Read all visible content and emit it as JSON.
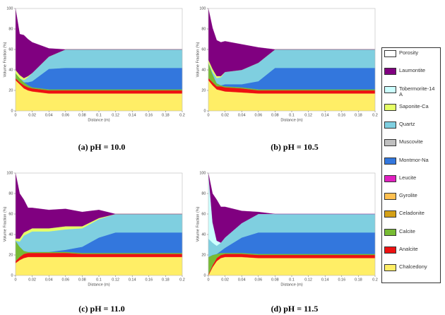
{
  "chart_data": [
    {
      "type": "area",
      "title": "(a) pH = 10.0",
      "x_label": "Distance (m)",
      "y_label": "Volume Fraction (%)",
      "x": [
        0,
        0.005,
        0.01,
        0.015,
        0.02,
        0.04,
        0.06,
        0.08,
        0.1,
        0.12,
        0.2
      ],
      "xlim": [
        0,
        0.2
      ],
      "ylim": [
        0,
        100
      ],
      "xticks": [
        0,
        0.02,
        0.04,
        0.06,
        0.08,
        0.1,
        0.12,
        0.14,
        0.16,
        0.18,
        0.2
      ],
      "yticks": [
        0,
        20,
        40,
        60,
        80,
        100
      ],
      "series": [
        {
          "name": "Chalcedony",
          "color": "#ffee66",
          "values": [
            30,
            26,
            22,
            20,
            19,
            17,
            17,
            17,
            17,
            17,
            17
          ]
        },
        {
          "name": "Analcite",
          "color": "#ee1111",
          "values": [
            2,
            2,
            3,
            3,
            3,
            3,
            3,
            3,
            3,
            3,
            3
          ]
        },
        {
          "name": "Calcite",
          "color": "#77bb33",
          "values": [
            5,
            4,
            3,
            2,
            1,
            1,
            1,
            1,
            1,
            1,
            1
          ]
        },
        {
          "name": "Montmor-Na",
          "color": "#3377dd",
          "values": [
            0,
            0,
            0,
            3,
            6,
            20,
            21,
            21,
            21,
            21,
            21
          ]
        },
        {
          "name": "Quartz",
          "color": "#7fcfe0",
          "values": [
            0,
            0,
            2,
            5,
            8,
            12,
            18,
            18,
            18,
            18,
            18
          ]
        },
        {
          "name": "Saponite-Ca",
          "color": "#e6ff66",
          "values": [
            3,
            3,
            2,
            1,
            0,
            0,
            0,
            0,
            0,
            0,
            0
          ]
        },
        {
          "name": "Laumontite",
          "color": "#800080",
          "values": [
            60,
            40,
            42,
            36,
            30,
            8,
            0,
            0,
            0,
            0,
            0
          ]
        }
      ]
    },
    {
      "type": "area",
      "title": "(b) pH = 10.5",
      "x_label": "Distance (m)",
      "y_label": "Volume Fraction (%)",
      "x": [
        0,
        0.005,
        0.01,
        0.015,
        0.02,
        0.04,
        0.06,
        0.08,
        0.1,
        0.12,
        0.2
      ],
      "xlim": [
        0,
        0.2
      ],
      "ylim": [
        0,
        100
      ],
      "xticks": [
        0,
        0.02,
        0.04,
        0.06,
        0.08,
        0.1,
        0.12,
        0.14,
        0.16,
        0.18,
        0.2
      ],
      "yticks": [
        0,
        20,
        40,
        60,
        80,
        100
      ],
      "series": [
        {
          "name": "Chalcedony",
          "color": "#ffee66",
          "values": [
            30,
            25,
            21,
            20,
            19,
            18,
            17,
            17,
            17,
            17,
            17
          ]
        },
        {
          "name": "Analcite",
          "color": "#ee1111",
          "values": [
            2,
            3,
            3,
            4,
            4,
            4,
            3,
            3,
            3,
            3,
            3
          ]
        },
        {
          "name": "Calcite",
          "color": "#77bb33",
          "values": [
            15,
            8,
            3,
            1,
            1,
            1,
            1,
            1,
            1,
            1,
            1
          ]
        },
        {
          "name": "Montmor-Na",
          "color": "#3377dd",
          "values": [
            0,
            0,
            0,
            0,
            2,
            3,
            8,
            21,
            21,
            21,
            21
          ]
        },
        {
          "name": "Quartz",
          "color": "#7fcfe0",
          "values": [
            0,
            2,
            5,
            8,
            12,
            14,
            18,
            18,
            18,
            18,
            18
          ]
        },
        {
          "name": "Saponite-Ca",
          "color": "#e6ff66",
          "values": [
            3,
            3,
            2,
            1,
            0,
            0,
            0,
            0,
            0,
            0,
            0
          ]
        },
        {
          "name": "Laumontite",
          "color": "#800080",
          "values": [
            50,
            40,
            35,
            33,
            30,
            25,
            15,
            0,
            0,
            0,
            0
          ]
        }
      ]
    },
    {
      "type": "area",
      "title": "(c) pH = 11.0",
      "x_label": "Distance (m)",
      "y_label": "Volume Fraction (%)",
      "x": [
        0,
        0.005,
        0.01,
        0.015,
        0.02,
        0.04,
        0.06,
        0.08,
        0.1,
        0.12,
        0.2
      ],
      "xlim": [
        0,
        0.2
      ],
      "ylim": [
        0,
        100
      ],
      "xticks": [
        0,
        0.02,
        0.04,
        0.06,
        0.08,
        0.1,
        0.12,
        0.14,
        0.16,
        0.18,
        0.2
      ],
      "yticks": [
        0,
        20,
        40,
        60,
        80,
        100
      ],
      "series": [
        {
          "name": "Chalcedony",
          "color": "#ffee66",
          "values": [
            12,
            15,
            17,
            18,
            18,
            18,
            18,
            18,
            18,
            18,
            18
          ]
        },
        {
          "name": "Analcite",
          "color": "#ee1111",
          "values": [
            2,
            3,
            4,
            4,
            4,
            4,
            4,
            3,
            3,
            3,
            3
          ]
        },
        {
          "name": "Calcite",
          "color": "#77bb33",
          "values": [
            20,
            10,
            3,
            1,
            1,
            1,
            1,
            1,
            1,
            1,
            1
          ]
        },
        {
          "name": "Montmor-Na",
          "color": "#3377dd",
          "values": [
            0,
            0,
            0,
            0,
            0,
            0,
            2,
            6,
            15,
            20,
            20
          ]
        },
        {
          "name": "Quartz",
          "color": "#7fcfe0",
          "values": [
            0,
            5,
            15,
            18,
            20,
            20,
            20,
            18,
            18,
            18,
            18
          ]
        },
        {
          "name": "Saponite-Ca",
          "color": "#e6ff66",
          "values": [
            2,
            3,
            3,
            3,
            3,
            3,
            3,
            2,
            1,
            0,
            0
          ]
        },
        {
          "name": "Laumontite",
          "color": "#800080",
          "values": [
            64,
            44,
            32,
            22,
            20,
            18,
            17,
            14,
            8,
            0,
            0
          ]
        }
      ]
    },
    {
      "type": "area",
      "title": "(d) pH = 11.5",
      "x_label": "Distance (m)",
      "y_label": "Volume Fraction (%)",
      "x": [
        0,
        0.005,
        0.01,
        0.015,
        0.02,
        0.04,
        0.06,
        0.08,
        0.1,
        0.12,
        0.2
      ],
      "xlim": [
        0,
        0.2
      ],
      "ylim": [
        0,
        100
      ],
      "xticks": [
        0,
        0.02,
        0.04,
        0.06,
        0.08,
        0.1,
        0.12,
        0.14,
        0.16,
        0.18,
        0.2
      ],
      "yticks": [
        0,
        20,
        40,
        60,
        80,
        100
      ],
      "series": [
        {
          "name": "Chalcedony",
          "color": "#ffee66",
          "values": [
            0,
            8,
            14,
            17,
            18,
            18,
            17,
            17,
            17,
            17,
            17
          ]
        },
        {
          "name": "Analcite",
          "color": "#ee1111",
          "values": [
            1,
            2,
            3,
            3,
            3,
            3,
            3,
            3,
            3,
            3,
            3
          ]
        },
        {
          "name": "Calcite",
          "color": "#77bb33",
          "values": [
            17,
            10,
            4,
            2,
            1,
            1,
            1,
            1,
            1,
            1,
            1
          ]
        },
        {
          "name": "Montmor-Na",
          "color": "#3377dd",
          "values": [
            0,
            0,
            0,
            2,
            5,
            15,
            21,
            21,
            21,
            21,
            21
          ]
        },
        {
          "name": "Quartz",
          "color": "#7fcfe0",
          "values": [
            18,
            12,
            8,
            8,
            10,
            14,
            18,
            18,
            18,
            18,
            18
          ]
        },
        {
          "name": "Tobermorite-14A",
          "color": "#ccffff",
          "values": [
            64,
            20,
            5,
            0,
            0,
            0,
            0,
            0,
            0,
            0,
            0
          ]
        },
        {
          "name": "Laumontite",
          "color": "#800080",
          "values": [
            0,
            28,
            40,
            35,
            30,
            12,
            2,
            0,
            0,
            0,
            0
          ]
        }
      ]
    }
  ],
  "legend": {
    "items": [
      {
        "name": "Porosity",
        "color": "#ffffff"
      },
      {
        "name": "Laumontite",
        "color": "#800080"
      },
      {
        "name": "Tobermorite-14A",
        "color": "#ccffff"
      },
      {
        "name": "Saponite-Ca",
        "color": "#e6ff66"
      },
      {
        "name": "Quartz",
        "color": "#7fcfe0"
      },
      {
        "name": "Muscovite",
        "color": "#c0c0c0"
      },
      {
        "name": "Montmor-Na",
        "color": "#3377dd"
      },
      {
        "name": "Leucite",
        "color": "#e020c0"
      },
      {
        "name": "Gyrolite",
        "color": "#ffc050"
      },
      {
        "name": "Celadonite",
        "color": "#d4a017"
      },
      {
        "name": "Calcite",
        "color": "#77bb33"
      },
      {
        "name": "Analcite",
        "color": "#ee1111"
      },
      {
        "name": "Chalcedony",
        "color": "#ffee66"
      }
    ]
  }
}
